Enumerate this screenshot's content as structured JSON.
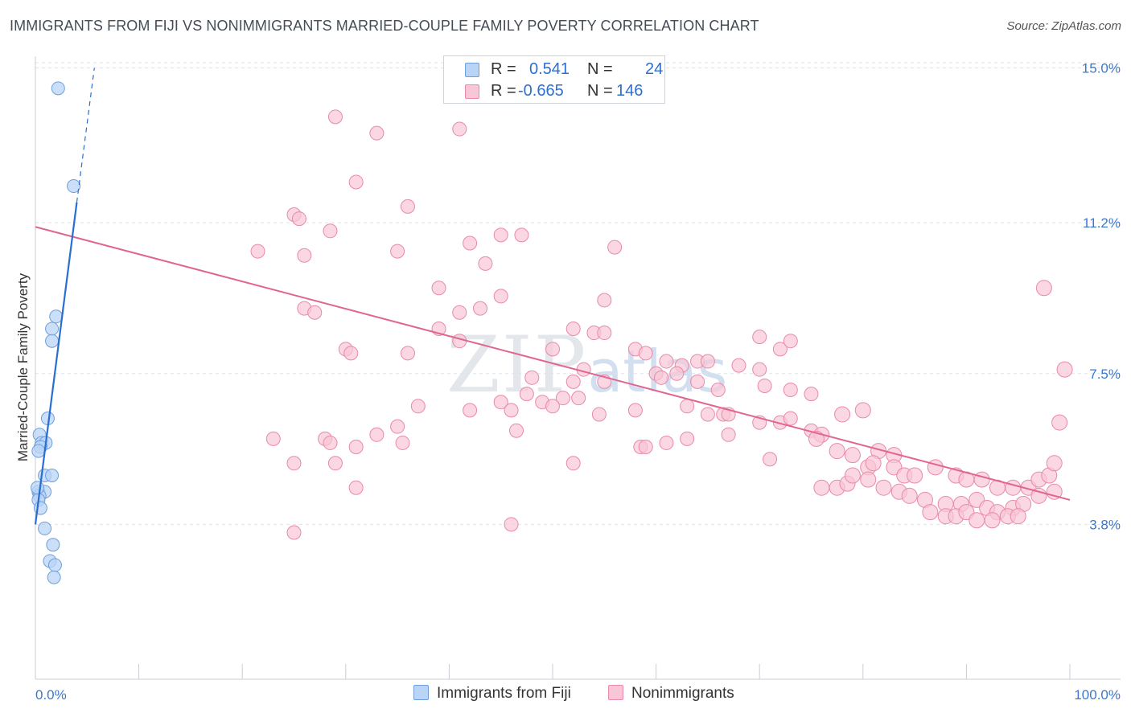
{
  "title": "IMMIGRANTS FROM FIJI VS NONIMMIGRANTS MARRIED-COUPLE FAMILY POVERTY CORRELATION CHART",
  "source": "Source: ZipAtlas.com",
  "watermark": {
    "main": "ZIP",
    "sub": "atlas"
  },
  "legend": {
    "rows": [
      {
        "r_label": "R =",
        "r_value": "0.541",
        "n_label": "N =",
        "n_value": "24"
      },
      {
        "r_label": "R =",
        "r_value": "-0.665",
        "n_label": "N =",
        "n_value": "146"
      }
    ]
  },
  "bottom_legend": {
    "fiji": "Immigrants from Fiji",
    "non": "Nonimmigrants"
  },
  "colors": {
    "fiji_fill": "#bad4f5",
    "fiji_stroke": "#6d9fdc",
    "fiji_line": "#2a6ed0",
    "non_fill": "#f8c6d6",
    "non_stroke": "#e88aa8",
    "non_line": "#e0668f",
    "grid": "#dfe3e8",
    "tick_label": "#3a78d0"
  },
  "chart_data": {
    "type": "scatter",
    "title": "IMMIGRANTS FROM FIJI VS NONIMMIGRANTS MARRIED-COUPLE FAMILY POVERTY CORRELATION CHART",
    "xlabel": "",
    "ylabel": "Married-Couple Family Poverty",
    "xlim": [
      0,
      100
    ],
    "ylim": [
      0,
      15.4
    ],
    "x_tick_labels": [
      "0.0%",
      "100.0%"
    ],
    "y_ticks": [
      3.8,
      7.5,
      11.2,
      15.0
    ],
    "y_tick_labels": [
      "3.8%",
      "7.5%",
      "11.2%",
      "15.0%"
    ],
    "grid": true,
    "series": [
      {
        "name": "Immigrants from Fiji",
        "R": 0.541,
        "N": 24,
        "trend": {
          "x0": 0.0,
          "y0": 3.8,
          "x1": 4.0,
          "y1": 11.7,
          "dash_to_x": 5.7,
          "dash_to_y": 15.0
        },
        "points": [
          [
            2.2,
            14.5
          ],
          [
            3.7,
            12.1
          ],
          [
            2.0,
            8.9
          ],
          [
            1.6,
            8.6
          ],
          [
            1.6,
            8.3
          ],
          [
            1.2,
            6.4
          ],
          [
            0.4,
            6.0
          ],
          [
            0.6,
            5.8
          ],
          [
            1.0,
            5.8
          ],
          [
            0.5,
            5.7
          ],
          [
            0.3,
            5.6
          ],
          [
            0.9,
            5.0
          ],
          [
            1.6,
            5.0
          ],
          [
            0.3,
            4.6
          ],
          [
            0.9,
            4.6
          ],
          [
            0.4,
            4.5
          ],
          [
            0.3,
            4.4
          ],
          [
            0.5,
            4.2
          ],
          [
            0.9,
            3.7
          ],
          [
            1.7,
            3.3
          ],
          [
            1.4,
            2.9
          ],
          [
            1.9,
            2.8
          ],
          [
            1.8,
            2.5
          ],
          [
            0.2,
            4.7
          ]
        ]
      },
      {
        "name": "Nonimmigrants",
        "R": -0.665,
        "N": 146,
        "trend": {
          "x0": 0.0,
          "y0": 11.1,
          "x1": 100.0,
          "y1": 4.4
        },
        "points": [
          [
            29.0,
            13.8
          ],
          [
            33.0,
            13.4
          ],
          [
            41.0,
            13.5
          ],
          [
            31.0,
            12.2
          ],
          [
            36.0,
            11.6
          ],
          [
            25.0,
            11.4
          ],
          [
            25.5,
            11.3
          ],
          [
            28.5,
            11.0
          ],
          [
            45.0,
            10.9
          ],
          [
            47.0,
            10.9
          ],
          [
            42.0,
            10.7
          ],
          [
            56.0,
            10.6
          ],
          [
            21.5,
            10.5
          ],
          [
            26.0,
            10.4
          ],
          [
            35.0,
            10.5
          ],
          [
            43.5,
            10.2
          ],
          [
            39.0,
            9.6
          ],
          [
            45.0,
            9.4
          ],
          [
            55.0,
            9.3
          ],
          [
            43.0,
            9.1
          ],
          [
            26.0,
            9.1
          ],
          [
            27.0,
            9.0
          ],
          [
            41.0,
            9.0
          ],
          [
            97.5,
            9.6
          ],
          [
            39.0,
            8.6
          ],
          [
            52.0,
            8.6
          ],
          [
            54.0,
            8.5
          ],
          [
            55.0,
            8.5
          ],
          [
            70.0,
            8.4
          ],
          [
            41.0,
            8.3
          ],
          [
            72.0,
            8.1
          ],
          [
            73.0,
            8.3
          ],
          [
            30.0,
            8.1
          ],
          [
            30.5,
            8.0
          ],
          [
            36.0,
            8.0
          ],
          [
            50.0,
            8.1
          ],
          [
            58.0,
            8.1
          ],
          [
            59.0,
            8.0
          ],
          [
            61.0,
            7.8
          ],
          [
            62.5,
            7.7
          ],
          [
            64.0,
            7.8
          ],
          [
            65.0,
            7.8
          ],
          [
            68.0,
            7.7
          ],
          [
            70.0,
            7.6
          ],
          [
            53.0,
            7.6
          ],
          [
            60.0,
            7.5
          ],
          [
            62.0,
            7.5
          ],
          [
            55.0,
            7.3
          ],
          [
            48.0,
            7.4
          ],
          [
            52.0,
            7.3
          ],
          [
            60.5,
            7.4
          ],
          [
            64.0,
            7.3
          ],
          [
            66.0,
            7.1
          ],
          [
            70.5,
            7.2
          ],
          [
            73.0,
            7.1
          ],
          [
            75.0,
            7.0
          ],
          [
            47.5,
            7.0
          ],
          [
            49.0,
            6.8
          ],
          [
            51.0,
            6.9
          ],
          [
            52.5,
            6.9
          ],
          [
            45.0,
            6.8
          ],
          [
            50.0,
            6.7
          ],
          [
            46.0,
            6.6
          ],
          [
            54.5,
            6.5
          ],
          [
            58.0,
            6.6
          ],
          [
            63.0,
            6.7
          ],
          [
            65.0,
            6.5
          ],
          [
            66.5,
            6.5
          ],
          [
            67.0,
            6.5
          ],
          [
            70.0,
            6.3
          ],
          [
            72.0,
            6.3
          ],
          [
            73.0,
            6.4
          ],
          [
            75.0,
            6.1
          ],
          [
            76.0,
            6.0
          ],
          [
            78.0,
            6.5
          ],
          [
            80.0,
            6.6
          ],
          [
            37.0,
            6.7
          ],
          [
            42.0,
            6.6
          ],
          [
            46.5,
            6.1
          ],
          [
            35.0,
            6.2
          ],
          [
            28.0,
            5.9
          ],
          [
            35.5,
            5.8
          ],
          [
            33.0,
            6.0
          ],
          [
            23.0,
            5.9
          ],
          [
            28.5,
            5.8
          ],
          [
            31.0,
            5.7
          ],
          [
            58.5,
            5.7
          ],
          [
            61.0,
            5.8
          ],
          [
            63.0,
            5.9
          ],
          [
            59.0,
            5.7
          ],
          [
            67.0,
            6.0
          ],
          [
            75.5,
            5.9
          ],
          [
            77.5,
            5.6
          ],
          [
            79.0,
            5.5
          ],
          [
            81.5,
            5.6
          ],
          [
            83.0,
            5.5
          ],
          [
            25.0,
            5.3
          ],
          [
            29.0,
            5.3
          ],
          [
            52.0,
            5.3
          ],
          [
            71.0,
            5.4
          ],
          [
            80.5,
            5.2
          ],
          [
            81.0,
            5.3
          ],
          [
            83.0,
            5.2
          ],
          [
            84.0,
            5.0
          ],
          [
            85.0,
            5.0
          ],
          [
            87.0,
            5.2
          ],
          [
            89.0,
            5.0
          ],
          [
            90.0,
            4.9
          ],
          [
            91.5,
            4.9
          ],
          [
            93.0,
            4.7
          ],
          [
            94.5,
            4.7
          ],
          [
            96.0,
            4.7
          ],
          [
            97.0,
            4.9
          ],
          [
            98.0,
            5.0
          ],
          [
            98.5,
            5.3
          ],
          [
            76.0,
            4.7
          ],
          [
            77.5,
            4.7
          ],
          [
            78.5,
            4.8
          ],
          [
            80.5,
            4.9
          ],
          [
            82.0,
            4.7
          ],
          [
            83.5,
            4.6
          ],
          [
            84.5,
            4.5
          ],
          [
            86.0,
            4.4
          ],
          [
            88.0,
            4.3
          ],
          [
            89.5,
            4.3
          ],
          [
            91.0,
            4.4
          ],
          [
            92.0,
            4.2
          ],
          [
            93.0,
            4.1
          ],
          [
            94.5,
            4.2
          ],
          [
            95.5,
            4.3
          ],
          [
            97.0,
            4.5
          ],
          [
            98.5,
            4.6
          ],
          [
            86.5,
            4.1
          ],
          [
            88.0,
            4.0
          ],
          [
            89.0,
            4.0
          ],
          [
            90.0,
            4.1
          ],
          [
            91.0,
            3.9
          ],
          [
            92.5,
            3.9
          ],
          [
            94.0,
            4.0
          ],
          [
            95.0,
            4.0
          ],
          [
            25.0,
            3.6
          ],
          [
            46.0,
            3.8
          ],
          [
            31.0,
            4.7
          ],
          [
            99.0,
            6.3
          ],
          [
            99.5,
            7.6
          ],
          [
            79.0,
            5.0
          ]
        ]
      }
    ]
  }
}
